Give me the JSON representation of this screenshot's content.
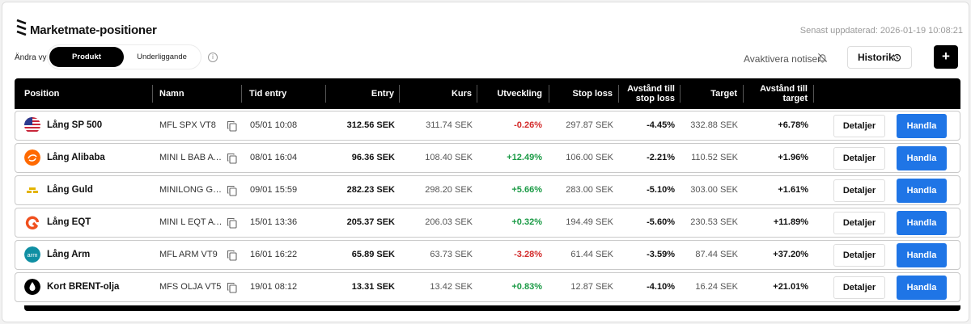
{
  "header": {
    "title": "Marketmate-positioner",
    "updated": "Senast uppdaterad: 2026-01-19 10:08:21"
  },
  "toolbar": {
    "view_label": "Ändra vy:",
    "view_options": [
      "Produkt",
      "Underliggande"
    ],
    "info_glyph": "i",
    "notify_label": "Avaktivera notiser",
    "history_label": "Historik",
    "add_label": "+"
  },
  "table": {
    "columns": [
      "Position",
      "Namn",
      "Tid entry",
      "Entry",
      "Kurs",
      "Utveckling",
      "Stop loss",
      "Avstånd till stop loss",
      "Target",
      "Avstånd till target"
    ],
    "detail_label": "Detaljer",
    "trade_label": "Handla",
    "rows": [
      {
        "position": "Lång SP 500",
        "icon": "us-flag-icon",
        "namn": "MFL SPX VT8",
        "tid": "05/01 10:08",
        "entry": "312.56 SEK",
        "kurs": "311.74 SEK",
        "utveckling": "-0.26%",
        "trend": "neg",
        "stop": "297.87 SEK",
        "avst_stop": "-4.45%",
        "target": "332.88 SEK",
        "avst_target": "+6.78%"
      },
      {
        "position": "Lång Alibaba",
        "icon": "alibaba-icon",
        "namn": "MINI L BAB AVA",
        "tid": "08/01 16:04",
        "entry": "96.36 SEK",
        "kurs": "108.40 SEK",
        "utveckling": "+12.49%",
        "trend": "pos",
        "stop": "106.00 SEK",
        "avst_stop": "-2.21%",
        "target": "110.52 SEK",
        "avst_target": "+1.96%"
      },
      {
        "position": "Lång Guld",
        "icon": "gold-icon",
        "namn": "MINILONG GULD",
        "tid": "09/01 15:59",
        "entry": "282.23 SEK",
        "kurs": "298.20 SEK",
        "utveckling": "+5.66%",
        "trend": "pos",
        "stop": "283.00 SEK",
        "avst_stop": "-5.10%",
        "target": "303.00 SEK",
        "avst_target": "+1.61%"
      },
      {
        "position": "Lång EQT",
        "icon": "eqt-icon",
        "namn": "MINI L EQT AVA",
        "tid": "15/01 13:36",
        "entry": "205.37 SEK",
        "kurs": "206.03 SEK",
        "utveckling": "+0.32%",
        "trend": "pos",
        "stop": "194.49 SEK",
        "avst_stop": "-5.60%",
        "target": "230.53 SEK",
        "avst_target": "+11.89%"
      },
      {
        "position": "Lång Arm",
        "icon": "arm-icon",
        "namn": "MFL ARM VT9",
        "tid": "16/01 16:22",
        "entry": "65.89 SEK",
        "kurs": "63.73 SEK",
        "utveckling": "-3.28%",
        "trend": "neg",
        "stop": "61.44 SEK",
        "avst_stop": "-3.59%",
        "target": "87.44 SEK",
        "avst_target": "+37.20%"
      },
      {
        "position": "Kort BRENT-olja",
        "icon": "oil-drop-icon",
        "namn": "MFS OLJA VT5",
        "tid": "19/01 08:12",
        "entry": "13.31 SEK",
        "kurs": "13.42 SEK",
        "utveckling": "+0.83%",
        "trend": "pos",
        "stop": "12.87 SEK",
        "avst_stop": "-4.10%",
        "target": "16.24 SEK",
        "avst_target": "+21.01%"
      }
    ]
  }
}
